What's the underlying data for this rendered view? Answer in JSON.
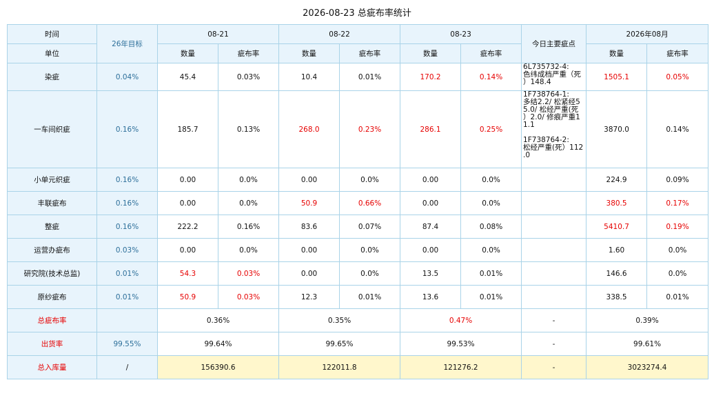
{
  "title": "2026-08-23 总疵布率统计",
  "header": {
    "time": "时间",
    "unit": "单位",
    "target": "26年目标",
    "dates": [
      "08-21",
      "08-22",
      "08-23"
    ],
    "main_defect": "今日主要疵点",
    "month": "2026年08月",
    "qty": "数量",
    "rate": "疵布率"
  },
  "rows": [
    {
      "name": "染疵",
      "target": "0.04%",
      "d1q": "45.4",
      "d1r": "0.03%",
      "d2q": "10.4",
      "d2r": "0.01%",
      "d3q": "170.2",
      "d3r": "0.14%",
      "note": "6L735732-4:\n色纬成档严重（死\n）148.4",
      "mq": "1505.1",
      "mr": "0.05%"
    },
    {
      "name": "一车间织疵",
      "target": "0.16%",
      "d1q": "185.7",
      "d1r": "0.13%",
      "d2q": "268.0",
      "d2r": "0.23%",
      "d3q": "286.1",
      "d3r": "0.25%",
      "note": "1F738764-1:\n多结2.2/ 松紧经5\n5.0/ 松经严重(死\n）2.0/ 修痕严重1\n1.1\n\n1F738764-2:\n松经严重(死）112\n.0",
      "mq": "3870.0",
      "mr": "0.14%"
    },
    {
      "name": "小单元织疵",
      "target": "0.16%",
      "d1q": "0.00",
      "d1r": "0.0%",
      "d2q": "0.00",
      "d2r": "0.0%",
      "d3q": "0.00",
      "d3r": "0.0%",
      "note": "",
      "mq": "224.9",
      "mr": "0.09%"
    },
    {
      "name": "丰联疵布",
      "target": "0.16%",
      "d1q": "0.00",
      "d1r": "0.0%",
      "d2q": "50.9",
      "d2r": "0.66%",
      "d3q": "0.00",
      "d3r": "0.0%",
      "note": "",
      "mq": "380.5",
      "mr": "0.17%"
    },
    {
      "name": "整疵",
      "target": "0.16%",
      "d1q": "222.2",
      "d1r": "0.16%",
      "d2q": "83.6",
      "d2r": "0.07%",
      "d3q": "87.4",
      "d3r": "0.08%",
      "note": "",
      "mq": "5410.7",
      "mr": "0.19%"
    },
    {
      "name": "运营办疵布",
      "target": "0.03%",
      "d1q": "0.00",
      "d1r": "0.0%",
      "d2q": "0.00",
      "d2r": "0.0%",
      "d3q": "0.00",
      "d3r": "0.0%",
      "note": "",
      "mq": "1.60",
      "mr": "0.0%"
    },
    {
      "name": "研究院(技术总监)",
      "target": "0.01%",
      "d1q": "54.3",
      "d1r": "0.03%",
      "d2q": "0.00",
      "d2r": "0.0%",
      "d3q": "13.5",
      "d3r": "0.01%",
      "note": "",
      "mq": "146.6",
      "mr": "0.0%"
    },
    {
      "name": "原纱疵布",
      "target": "0.01%",
      "d1q": "50.9",
      "d1r": "0.03%",
      "d2q": "12.3",
      "d2r": "0.01%",
      "d3q": "13.6",
      "d3r": "0.01%",
      "note": "",
      "mq": "338.5",
      "mr": "0.01%"
    }
  ],
  "summary": [
    {
      "name": "总疵布率",
      "target": "",
      "d1": "0.36%",
      "d2": "0.35%",
      "d3": "0.47%",
      "note": "-",
      "month": "0.39%"
    },
    {
      "name": "出货率",
      "target": "99.55%",
      "d1": "99.64%",
      "d2": "99.65%",
      "d3": "99.53%",
      "note": "-",
      "month": "99.61%"
    },
    {
      "name": "总入库量",
      "target": "/",
      "d1": "156390.6",
      "d2": "122011.8",
      "d3": "121276.2",
      "note": "-",
      "month": "3023274.4"
    }
  ],
  "colors": {
    "header_bg": "#e8f4fc",
    "border": "#a9d3e8",
    "highlight": "#e60000",
    "target_text": "#2d6f9a",
    "inventory_bg": "#fff7cc"
  }
}
